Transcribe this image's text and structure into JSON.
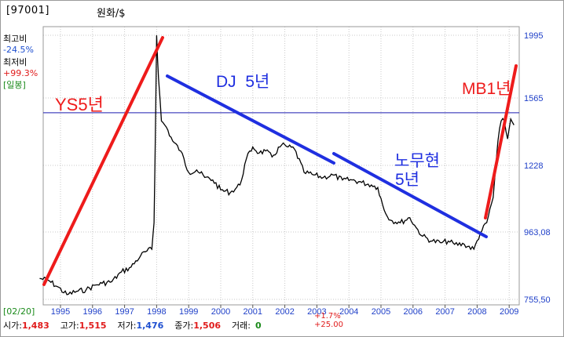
{
  "header": {
    "code": "[97001]",
    "pair": "원화/$"
  },
  "side_stats": {
    "high_label": "최고비",
    "high_value": "-24.5%",
    "low_label": "최저비",
    "low_value": "+99.3%",
    "period": "[일봉]"
  },
  "footer": {
    "date": "[02/20]",
    "open_label": "시가:",
    "open_value": "1,483",
    "high_label": "고가:",
    "high_value": "1,515",
    "low_label": "저가:",
    "low_value": "1,476",
    "close_label": "종가:",
    "close_value": "1,506",
    "volume_label": "거래:",
    "volume_value": "0",
    "change_pct": "+1.7%",
    "change_abs": "+25.00"
  },
  "colors": {
    "price_line": "#000000",
    "annotation_red": "#ee1b1b",
    "annotation_blue": "#1f2fe0",
    "axis_text": "#1e3fc8"
  },
  "chart_data": {
    "type": "line",
    "title": "",
    "xlabel": "",
    "ylabel": "",
    "x_ticks": [
      "1995",
      "1996",
      "1997",
      "1998",
      "1999",
      "2000",
      "2001",
      "2002",
      "2003",
      "2004",
      "2005",
      "2006",
      "2007",
      "2008",
      "2009"
    ],
    "y_ticks": [
      "1995",
      "1565",
      "1228",
      "963,08",
      "755,50"
    ],
    "y_tick_values": [
      1995,
      1565,
      1228,
      963.08,
      755.5
    ],
    "ylim": [
      755.5,
      1995
    ],
    "xlim": [
      1994.35,
      2009.2
    ],
    "horizontal_ref_line": 1491,
    "series": [
      {
        "x": [
          1994.35,
          1994.6,
          1994.9,
          1995.2,
          1995.5,
          1995.8,
          1996.1,
          1996.3,
          1996.6,
          1996.9,
          1997.2,
          1997.5,
          1997.7,
          1997.85,
          1997.92,
          1997.97,
          1998.0,
          1998.06,
          1998.15,
          1998.3,
          1998.5,
          1998.75,
          1999.0,
          1999.25,
          1999.5,
          1999.75,
          2000.0,
          2000.3,
          2000.6,
          2000.8,
          2001.0,
          2001.2,
          2001.4,
          2001.6,
          2001.9,
          2002.1,
          2002.3,
          2002.6,
          2002.9,
          2003.2,
          2003.5,
          2003.8,
          2004.1,
          2004.4,
          2004.7,
          2004.9,
          2005.1,
          2005.3,
          2005.6,
          2005.9,
          2006.1,
          2006.3,
          2006.6,
          2006.9,
          2007.1,
          2007.3,
          2007.6,
          2007.9,
          2008.1,
          2008.3,
          2008.5,
          2008.65,
          2008.75,
          2008.85,
          2008.95,
          2009.05,
          2009.15
        ],
        "values": [
          820,
          815,
          795,
          770,
          780,
          785,
          800,
          805,
          810,
          840,
          855,
          890,
          905,
          910,
          1000,
          1500,
          1995,
          1700,
          1450,
          1420,
          1350,
          1300,
          1200,
          1210,
          1180,
          1170,
          1130,
          1120,
          1150,
          1260,
          1320,
          1290,
          1300,
          1270,
          1330,
          1320,
          1310,
          1200,
          1190,
          1180,
          1190,
          1170,
          1170,
          1160,
          1150,
          1140,
          1050,
          1010,
          1000,
          1020,
          980,
          950,
          935,
          930,
          935,
          925,
          925,
          910,
          960,
          1000,
          1100,
          1350,
          1450,
          1450,
          1360,
          1460,
          1430
        ]
      }
    ],
    "annotations": [
      {
        "text": "YS5년",
        "color": "red"
      },
      {
        "text": "DJ  5년",
        "color": "blue"
      },
      {
        "text": "노무현",
        "color": "blue"
      },
      {
        "text": "5년",
        "color": "blue"
      },
      {
        "text": "MB1년",
        "color": "red"
      }
    ]
  }
}
